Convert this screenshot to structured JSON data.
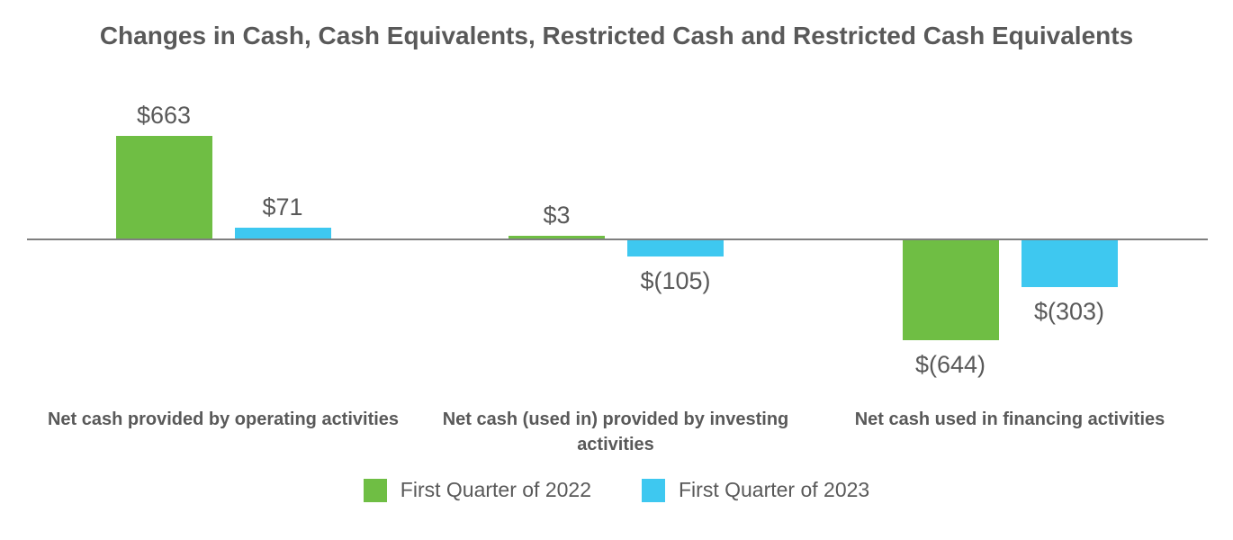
{
  "chart_data": {
    "type": "bar",
    "title": "Changes in Cash, Cash Equivalents, Restricted Cash and Restricted Cash Equivalents",
    "categories": [
      "Net cash provided by operating activities",
      "Net cash (used in) provided by investing activities",
      "Net cash used in financing activities"
    ],
    "series": [
      {
        "name": "First Quarter of 2022",
        "color": "#6fbe44",
        "values": [
          663,
          3,
          -644
        ],
        "labels": [
          "$663",
          "$3",
          "$(644)"
        ]
      },
      {
        "name": "First Quarter of 2023",
        "color": "#3ec8f0",
        "values": [
          71,
          -105,
          -303
        ],
        "labels": [
          "$71",
          "$(105)",
          "$(303)"
        ]
      }
    ],
    "ylim": [
      -700,
      700
    ],
    "grid": false,
    "legend_position": "bottom",
    "axis_color": "#7f7f7f",
    "text_color": "#595959"
  }
}
